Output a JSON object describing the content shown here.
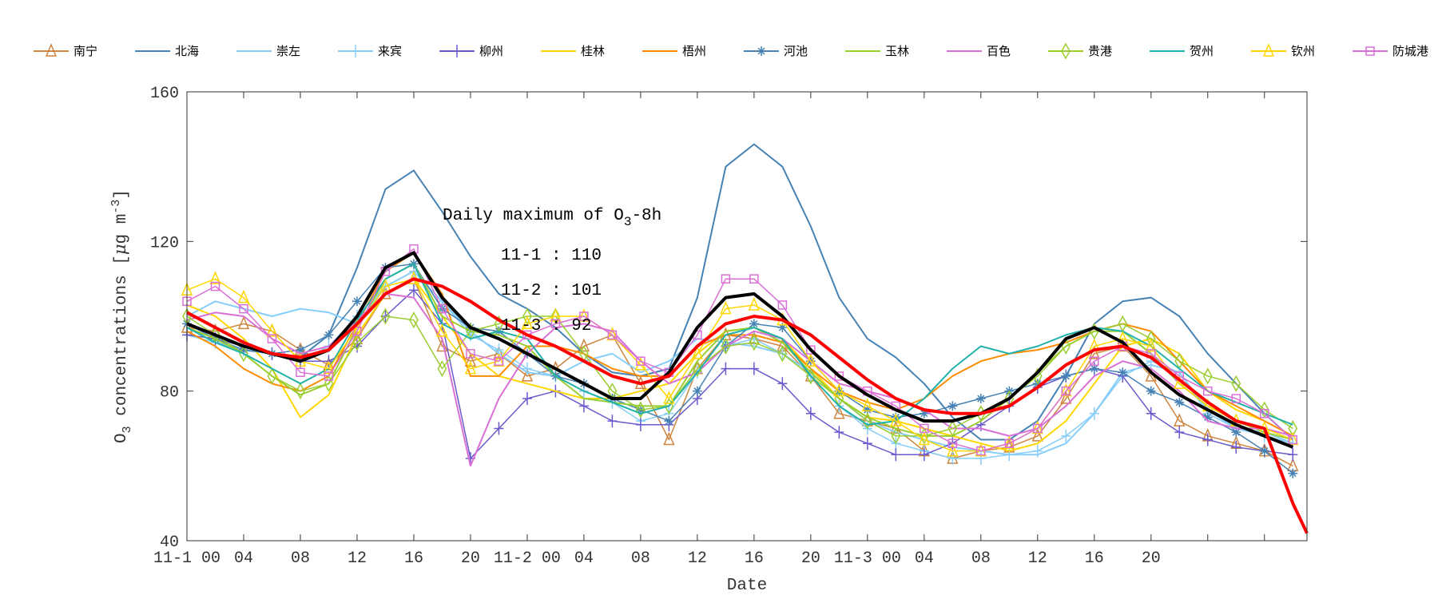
{
  "chart_data": {
    "type": "line",
    "title": "",
    "xlabel": "Date",
    "ylabel": "O3 concentrations [μg m-3]",
    "ylabel_parts": {
      "pre": "O",
      "sub": "3",
      "mid": " concentrations [",
      "mu": "μ",
      "post": "g m",
      "sup": "-3",
      "end": "]"
    },
    "xlim": [
      0,
      79
    ],
    "ylim": [
      40,
      160
    ],
    "yticks": [
      40,
      80,
      120,
      160
    ],
    "xticks": [
      0,
      4,
      8,
      12,
      16,
      20,
      24,
      28,
      32,
      36,
      40,
      44,
      48,
      52,
      56,
      60,
      64,
      68,
      72,
      76
    ],
    "xtick_labels": [
      "11-1 00",
      "04",
      "08",
      "12",
      "16",
      "20",
      "11-2 00",
      "04",
      "08",
      "12",
      "16",
      "20",
      "11-3 00",
      "04",
      "08",
      "12",
      "16",
      "20",
      "",
      ""
    ],
    "grid": false,
    "legend_position": "top",
    "annotation": {
      "title_pre": "Daily maximum of O",
      "title_sub": "3",
      "title_post": "-8h",
      "lines": [
        "11-1 : 110",
        "11-2 : 101",
        "11-3 : 92"
      ]
    },
    "x": [
      0,
      2,
      4,
      6,
      8,
      10,
      12,
      14,
      16,
      18,
      20,
      22,
      24,
      26,
      28,
      30,
      32,
      34,
      36,
      38,
      40,
      42,
      44,
      46,
      48,
      50,
      52,
      54,
      56,
      58,
      60,
      62,
      64,
      66,
      68,
      70,
      72,
      74,
      76,
      78
    ],
    "series": [
      {
        "name": "南宁",
        "color": "#cd853f",
        "marker": "triangle",
        "width": 1.5,
        "values": [
          97,
          96,
          98,
          96,
          91,
          87,
          94,
          106,
          110,
          92,
          88,
          90,
          84,
          86,
          92,
          95,
          82,
          67,
          86,
          95,
          94,
          92,
          84,
          74,
          72,
          70,
          64,
          62,
          64,
          65,
          68,
          78,
          90,
          92,
          84,
          72,
          68,
          66,
          64,
          60
        ]
      },
      {
        "name": "北海",
        "color": "#4682b4",
        "marker": "none",
        "width": 2,
        "values": [
          97,
          93,
          91,
          90,
          89,
          95,
          113,
          134,
          139,
          128,
          116,
          106,
          102,
          97,
          90,
          85,
          84,
          86,
          105,
          140,
          146,
          140,
          124,
          105,
          94,
          89,
          82,
          73,
          67,
          67,
          72,
          84,
          98,
          104,
          105,
          100,
          90,
          82,
          74,
          67
        ]
      },
      {
        "name": "崇左",
        "color": "#87cefa",
        "marker": "none",
        "width": 2,
        "values": [
          100,
          104,
          102,
          100,
          102,
          101,
          98,
          108,
          112,
          104,
          96,
          90,
          85,
          84,
          88,
          90,
          85,
          88,
          94,
          93,
          92,
          90,
          85,
          78,
          72,
          69,
          67,
          65,
          64,
          63,
          63,
          66,
          74,
          85,
          87,
          85,
          75,
          70,
          69,
          66
        ]
      },
      {
        "name": "来宾",
        "color": "#87cefa",
        "marker": "plus",
        "width": 1.5,
        "values": [
          95,
          93,
          91,
          90,
          88,
          92,
          100,
          108,
          112,
          104,
          95,
          91,
          86,
          84,
          80,
          77,
          72,
          74,
          85,
          92,
          94,
          90,
          84,
          76,
          70,
          66,
          64,
          62,
          62,
          63,
          64,
          68,
          74,
          84,
          88,
          85,
          74,
          70,
          68,
          66
        ]
      },
      {
        "name": "柳州",
        "color": "#6a5acd",
        "marker": "plus",
        "width": 1.5,
        "values": [
          95,
          94,
          92,
          90,
          88,
          88,
          92,
          100,
          107,
          98,
          62,
          70,
          78,
          80,
          76,
          72,
          71,
          71,
          78,
          86,
          86,
          82,
          74,
          69,
          66,
          63,
          63,
          66,
          71,
          76,
          81,
          84,
          86,
          84,
          74,
          69,
          67,
          65,
          64,
          63
        ]
      },
      {
        "name": "桂林",
        "color": "#ffd700",
        "marker": "none",
        "width": 2,
        "values": [
          103,
          100,
          94,
          86,
          73,
          79,
          95,
          106,
          110,
          100,
          90,
          84,
          82,
          80,
          78,
          78,
          80,
          82,
          90,
          96,
          97,
          94,
          86,
          78,
          73,
          72,
          70,
          68,
          66,
          64,
          66,
          72,
          82,
          92,
          94,
          90,
          80,
          75,
          72,
          68
        ]
      },
      {
        "name": "梧州",
        "color": "#ff8c00",
        "marker": "none",
        "width": 2,
        "values": [
          96,
          92,
          86,
          82,
          80,
          84,
          98,
          112,
          117,
          106,
          84,
          84,
          92,
          92,
          90,
          86,
          84,
          84,
          92,
          95,
          95,
          93,
          86,
          80,
          77,
          75,
          78,
          84,
          88,
          90,
          91,
          93,
          96,
          98,
          96,
          88,
          80,
          76,
          72,
          68
        ]
      },
      {
        "name": "河池",
        "color": "#4682b4",
        "marker": "star",
        "width": 1.5,
        "values": [
          98,
          94,
          91,
          90,
          91,
          95,
          104,
          113,
          114,
          102,
          97,
          96,
          90,
          84,
          82,
          78,
          75,
          72,
          80,
          92,
          98,
          97,
          88,
          80,
          75,
          73,
          74,
          76,
          78,
          80,
          82,
          84,
          86,
          85,
          80,
          77,
          73,
          69,
          64,
          58
        ]
      },
      {
        "name": "玉林",
        "color": "#9acd32",
        "marker": "none",
        "width": 2,
        "values": [
          97,
          94,
          90,
          84,
          79,
          82,
          97,
          110,
          114,
          100,
          96,
          95,
          92,
          84,
          78,
          77,
          76,
          76,
          88,
          96,
          97,
          93,
          85,
          78,
          73,
          70,
          68,
          68,
          72,
          78,
          85,
          92,
          96,
          96,
          90,
          82,
          76,
          72,
          69,
          67
        ]
      },
      {
        "name": "百色",
        "color": "#da70d6",
        "marker": "none",
        "width": 2,
        "values": [
          99,
          101,
          100,
          94,
          90,
          92,
          99,
          106,
          105,
          94,
          60,
          78,
          90,
          97,
          98,
          96,
          88,
          82,
          85,
          92,
          96,
          94,
          88,
          82,
          80,
          78,
          75,
          70,
          70,
          68,
          70,
          76,
          84,
          88,
          86,
          80,
          72,
          70,
          70,
          68
        ]
      },
      {
        "name": "贵港",
        "color": "#9acd32",
        "marker": "diamond",
        "width": 1.5,
        "values": [
          100,
          95,
          90,
          84,
          80,
          82,
          93,
          100,
          99,
          86,
          96,
          98,
          100,
          100,
          90,
          80,
          75,
          76,
          86,
          92,
          93,
          90,
          84,
          78,
          72,
          68,
          68,
          70,
          74,
          78,
          84,
          92,
          96,
          98,
          94,
          88,
          84,
          82,
          75,
          70
        ]
      },
      {
        "name": "贺州",
        "color": "#20b2aa",
        "marker": "none",
        "width": 2,
        "values": [
          97,
          93,
          90,
          86,
          82,
          86,
          99,
          110,
          114,
          98,
          94,
          96,
          94,
          84,
          80,
          77,
          74,
          76,
          85,
          95,
          97,
          94,
          84,
          76,
          71,
          72,
          78,
          86,
          92,
          90,
          92,
          95,
          97,
          96,
          92,
          86,
          80,
          77,
          74,
          71
        ]
      },
      {
        "name": "钦州",
        "color": "#ffd700",
        "marker": "triangle",
        "width": 1.5,
        "values": [
          107,
          110,
          105,
          96,
          88,
          86,
          97,
          108,
          110,
          96,
          86,
          88,
          98,
          100,
          100,
          95,
          87,
          78,
          90,
          102,
          103,
          99,
          88,
          80,
          76,
          72,
          67,
          64,
          64,
          66,
          70,
          80,
          92,
          94,
          92,
          82,
          76,
          72,
          70,
          67
        ]
      },
      {
        "name": "防城港",
        "color": "#da70d6",
        "marker": "square",
        "width": 1.5,
        "values": [
          104,
          108,
          102,
          94,
          85,
          84,
          96,
          112,
          118,
          102,
          90,
          88,
          95,
          98,
          100,
          95,
          88,
          85,
          95,
          110,
          110,
          103,
          91,
          84,
          80,
          76,
          70,
          66,
          64,
          66,
          70,
          80,
          88,
          92,
          90,
          84,
          80,
          78,
          74,
          67
        ]
      },
      {
        "color": "#000000",
        "marker": "none",
        "width": 4,
        "values": [
          98,
          95,
          92,
          90,
          88,
          91,
          100,
          113,
          117,
          105,
          97,
          94,
          90,
          86,
          82,
          78,
          78,
          85,
          97,
          105,
          106,
          100,
          91,
          84,
          79,
          75,
          72,
          72,
          74,
          78,
          85,
          94,
          97,
          93,
          85,
          79,
          75,
          71,
          68,
          65
        ]
      },
      {
        "color": "#ff0000",
        "marker": "none",
        "width": 4,
        "values": [
          101,
          97,
          93,
          90,
          89,
          91,
          98,
          106,
          110,
          108,
          104,
          99,
          95,
          92,
          88,
          84,
          82,
          84,
          92,
          98,
          100,
          99,
          95,
          89,
          83,
          78,
          75,
          74,
          74,
          76,
          81,
          87,
          91,
          92,
          89,
          83,
          77,
          72,
          70,
          50
        ]
      }
    ]
  }
}
